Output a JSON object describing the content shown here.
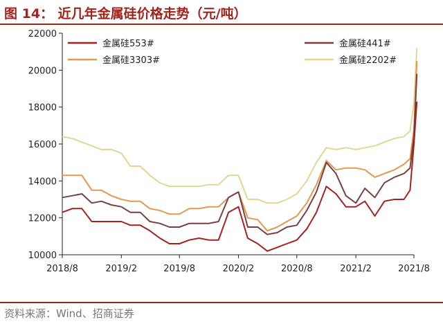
{
  "title": "图 14： 近几年金属硅价格走势（元/吨）",
  "source": "资料来源：Wind、招商证券",
  "colors": {
    "brand": "#a0241c",
    "s553": "#a3201e",
    "s441": "#7a3f3a",
    "s3303": "#e3974f",
    "s2202": "#e4d591"
  },
  "chart_data": {
    "type": "line",
    "title": "近几年金属硅价格走势（元/吨）",
    "xlabel": "",
    "ylabel": "",
    "ylim": [
      10000,
      22000
    ],
    "xlim": [
      "2018/8",
      "2021/8"
    ],
    "x_ticks": [
      "2018/8",
      "2019/2",
      "2019/8",
      "2020/2",
      "2020/8",
      "2021/2",
      "2021/8"
    ],
    "y_ticks": [
      10000,
      12000,
      14000,
      16000,
      18000,
      20000,
      22000
    ],
    "grid": false,
    "legend_position": "top",
    "series": [
      {
        "name": "金属硅553#",
        "color": "#a3201e",
        "x": [
          "2018-08-01",
          "2018-09-01",
          "2018-10-01",
          "2018-11-01",
          "2018-12-01",
          "2019-01-01",
          "2019-02-01",
          "2019-03-01",
          "2019-04-01",
          "2019-05-01",
          "2019-06-01",
          "2019-07-01",
          "2019-08-01",
          "2019-09-01",
          "2019-10-01",
          "2019-11-01",
          "2019-12-01",
          "2020-01-01",
          "2020-02-01",
          "2020-03-01",
          "2020-04-01",
          "2020-05-01",
          "2020-06-01",
          "2020-07-01",
          "2020-08-01",
          "2020-09-01",
          "2020-10-01",
          "2020-11-01",
          "2020-12-01",
          "2021-01-01",
          "2021-02-01",
          "2021-03-01",
          "2021-04-01",
          "2021-05-01",
          "2021-06-01",
          "2021-07-01",
          "2021-07-20",
          "2021-08-01",
          "2021-08-10"
        ],
        "values": [
          12300,
          12500,
          12500,
          11800,
          11800,
          11800,
          11800,
          11600,
          11600,
          11300,
          10900,
          10600,
          10600,
          10800,
          10900,
          10800,
          10800,
          12300,
          12600,
          10900,
          10600,
          10200,
          10400,
          10600,
          10800,
          11400,
          12300,
          13700,
          13300,
          12600,
          12600,
          12900,
          12100,
          12900,
          13000,
          13000,
          13500,
          16000,
          18300
        ]
      },
      {
        "name": "金属硅441#",
        "color": "#7a3f3a",
        "x": [
          "2018-08-01",
          "2018-09-01",
          "2018-10-01",
          "2018-11-01",
          "2018-12-01",
          "2019-01-01",
          "2019-02-01",
          "2019-03-01",
          "2019-04-01",
          "2019-05-01",
          "2019-06-01",
          "2019-07-01",
          "2019-08-01",
          "2019-09-01",
          "2019-10-01",
          "2019-11-01",
          "2019-12-01",
          "2020-01-01",
          "2020-02-01",
          "2020-03-01",
          "2020-04-01",
          "2020-05-01",
          "2020-06-01",
          "2020-07-01",
          "2020-08-01",
          "2020-09-01",
          "2020-10-01",
          "2020-11-01",
          "2020-12-01",
          "2021-01-01",
          "2021-02-01",
          "2021-03-01",
          "2021-04-01",
          "2021-05-01",
          "2021-06-01",
          "2021-07-01",
          "2021-07-20",
          "2021-08-01",
          "2021-08-10"
        ],
        "values": [
          13100,
          13200,
          13300,
          12800,
          12900,
          12700,
          12600,
          12300,
          12300,
          11800,
          11700,
          11500,
          11500,
          11700,
          11700,
          11700,
          11800,
          13100,
          13400,
          11500,
          11500,
          11100,
          11200,
          11500,
          11600,
          12400,
          13400,
          15000,
          14400,
          13200,
          12800,
          13600,
          13100,
          13900,
          14200,
          14400,
          14700,
          16400,
          19800
        ]
      },
      {
        "name": "金属硅3303#",
        "color": "#e3974f",
        "x": [
          "2018-08-01",
          "2018-09-01",
          "2018-10-01",
          "2018-11-01",
          "2018-12-01",
          "2019-01-01",
          "2019-02-01",
          "2019-03-01",
          "2019-04-01",
          "2019-05-01",
          "2019-06-01",
          "2019-07-01",
          "2019-08-01",
          "2019-09-01",
          "2019-10-01",
          "2019-11-01",
          "2019-12-01",
          "2020-01-01",
          "2020-02-01",
          "2020-03-01",
          "2020-04-01",
          "2020-05-01",
          "2020-06-01",
          "2020-07-01",
          "2020-08-01",
          "2020-09-01",
          "2020-10-01",
          "2020-11-01",
          "2020-12-01",
          "2021-01-01",
          "2021-02-01",
          "2021-03-01",
          "2021-04-01",
          "2021-05-01",
          "2021-06-01",
          "2021-07-01",
          "2021-07-20",
          "2021-08-01",
          "2021-08-10"
        ],
        "values": [
          14300,
          14300,
          14300,
          13500,
          13500,
          13200,
          13000,
          12900,
          12900,
          12500,
          12400,
          12200,
          12200,
          12500,
          12500,
          12600,
          12600,
          13100,
          13400,
          12000,
          11900,
          11300,
          11500,
          11800,
          12100,
          12800,
          13800,
          15100,
          14600,
          14700,
          14700,
          14600,
          14200,
          14400,
          14600,
          14900,
          15200,
          16800,
          20500
        ]
      },
      {
        "name": "金属硅2202#",
        "color": "#e4d591",
        "x": [
          "2018-08-01",
          "2018-09-01",
          "2018-10-01",
          "2018-11-01",
          "2018-12-01",
          "2019-01-01",
          "2019-02-01",
          "2019-03-01",
          "2019-04-01",
          "2019-05-01",
          "2019-06-01",
          "2019-07-01",
          "2019-08-01",
          "2019-09-01",
          "2019-10-01",
          "2019-11-01",
          "2019-12-01",
          "2020-01-01",
          "2020-02-01",
          "2020-03-01",
          "2020-04-01",
          "2020-05-01",
          "2020-06-01",
          "2020-07-01",
          "2020-08-01",
          "2020-09-01",
          "2020-10-01",
          "2020-11-01",
          "2020-12-01",
          "2021-01-01",
          "2021-02-01",
          "2021-03-01",
          "2021-04-01",
          "2021-05-01",
          "2021-06-01",
          "2021-07-01",
          "2021-07-20",
          "2021-08-01",
          "2021-08-10"
        ],
        "values": [
          16400,
          16300,
          16100,
          15900,
          15700,
          15700,
          15500,
          14800,
          14800,
          14300,
          13900,
          13700,
          13700,
          13700,
          13700,
          13800,
          13800,
          14300,
          14300,
          13000,
          13000,
          12800,
          12800,
          13000,
          13300,
          14000,
          15000,
          15800,
          15700,
          15800,
          15700,
          15800,
          15900,
          16100,
          16300,
          16400,
          16700,
          18200,
          21200
        ]
      }
    ]
  }
}
